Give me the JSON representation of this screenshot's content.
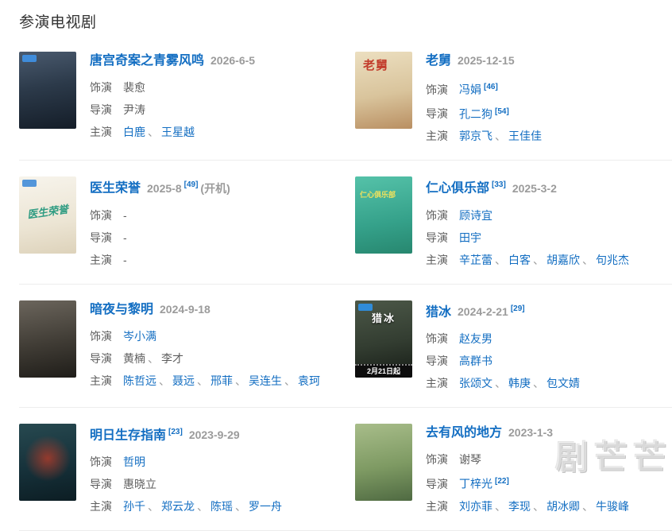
{
  "page": {
    "title": "参演电视剧",
    "watermark": "剧芒芒"
  },
  "colors": {
    "link": "#136ec2",
    "date": "#9b9b9b",
    "text": "#5e5e5e",
    "divider": "#ededed"
  },
  "entries": [
    {
      "title": "唐宫奇案之青雾风鸣",
      "date": "2026-6-5",
      "rows": [
        {
          "label": "饰演",
          "items": [
            {
              "name": "裴愈",
              "link": false
            }
          ]
        },
        {
          "label": "导演",
          "items": [
            {
              "name": "尹涛",
              "link": false
            }
          ]
        },
        {
          "label": "主演",
          "items": [
            {
              "name": "白鹿",
              "link": true
            },
            {
              "name": "王星越",
              "link": true
            }
          ]
        }
      ],
      "poster": {
        "bg": "linear-gradient(170deg,#4a5a6e 0%,#2c3a4a 45%,#141d28 100%)",
        "badge": "#3f8fe0"
      }
    },
    {
      "title": "老舅",
      "date": "2025-12-15",
      "rows": [
        {
          "label": "饰演",
          "items": [
            {
              "name": "冯娟",
              "link": true,
              "ref": "[46]"
            }
          ]
        },
        {
          "label": "导演",
          "items": [
            {
              "name": "孔二狗",
              "link": true,
              "ref": "[54]"
            }
          ]
        },
        {
          "label": "主演",
          "items": [
            {
              "name": "郭京飞",
              "link": true
            },
            {
              "name": "王佳佳",
              "link": true
            }
          ]
        }
      ],
      "poster": {
        "bg": "linear-gradient(170deg,#ecdfc0 0%,#d9c49c 55%,#b98f62 100%)",
        "label": "老舅",
        "label_color": "#c23b2a",
        "label_style": "tl"
      }
    },
    {
      "title": "医生荣誉",
      "date": "2025-8",
      "date_ref": "[49]",
      "date_suffix": "(开机)",
      "rows": [
        {
          "label": "饰演",
          "items": [
            {
              "name": "-",
              "link": false
            }
          ]
        },
        {
          "label": "导演",
          "items": [
            {
              "name": "-",
              "link": false
            }
          ]
        },
        {
          "label": "主演",
          "items": [
            {
              "name": "-",
              "link": false
            }
          ]
        }
      ],
      "poster": {
        "bg": "linear-gradient(170deg,#f7f4ec 0%,#ece5d4 60%,#ddd2ba 100%)",
        "badge": "#4a90d9",
        "label": "医生荣誉",
        "label_color": "#2f9c82",
        "label_style": "script"
      }
    },
    {
      "title": "仁心俱乐部",
      "title_ref": "[33]",
      "date": "2025-3-2",
      "rows": [
        {
          "label": "饰演",
          "items": [
            {
              "name": "顾诗宜",
              "link": true
            }
          ]
        },
        {
          "label": "导演",
          "items": [
            {
              "name": "田宇",
              "link": true
            }
          ]
        },
        {
          "label": "主演",
          "items": [
            {
              "name": "辛芷蕾",
              "link": true
            },
            {
              "name": "白客",
              "link": true
            },
            {
              "name": "胡嘉欣",
              "link": true
            },
            {
              "name": "句兆杰",
              "link": true
            }
          ]
        }
      ],
      "poster": {
        "bg": "linear-gradient(170deg,#55c2a9 0%,#35a18a 60%,#27876f 100%)",
        "label": "仁心俱乐部",
        "label_color": "#f2e25c",
        "label_style": "small-yellow"
      }
    },
    {
      "title": "暗夜与黎明",
      "date": "2024-9-18",
      "rows": [
        {
          "label": "饰演",
          "items": [
            {
              "name": "岑小满",
              "link": true
            }
          ]
        },
        {
          "label": "导演",
          "items": [
            {
              "name": "黄楠",
              "link": false
            },
            {
              "name": "李才",
              "link": false
            }
          ]
        },
        {
          "label": "主演",
          "items": [
            {
              "name": "陈哲远",
              "link": true
            },
            {
              "name": "聂远",
              "link": true
            },
            {
              "name": "邢菲",
              "link": true
            },
            {
              "name": "吴连生",
              "link": true
            },
            {
              "name": "袁珂",
              "link": true
            }
          ]
        }
      ],
      "poster": {
        "bg": "linear-gradient(170deg,#6b655c 0%,#403c35 55%,#1f1d19 100%)"
      }
    },
    {
      "title": "猎冰",
      "date": "2024-2-21",
      "date_ref": "[29]",
      "rows": [
        {
          "label": "饰演",
          "items": [
            {
              "name": "赵友男",
              "link": true
            }
          ]
        },
        {
          "label": "导演",
          "items": [
            {
              "name": "高群书",
              "link": true
            }
          ]
        },
        {
          "label": "主演",
          "items": [
            {
              "name": "张颂文",
              "link": true
            },
            {
              "name": "韩庚",
              "link": true
            },
            {
              "name": "包文婧",
              "link": true
            }
          ]
        }
      ],
      "poster": {
        "bg": "linear-gradient(170deg,#4c5848 0%,#333d31 55%,#161c16 100%)",
        "badge": "#2f8fe0",
        "label": "猎冰",
        "label_color": "#ffffff",
        "label_style": "cal",
        "banner": "2月21日起"
      }
    },
    {
      "title": "明日生存指南",
      "title_ref": "[23]",
      "date": "2023-9-29",
      "rows": [
        {
          "label": "饰演",
          "items": [
            {
              "name": "哲明",
              "link": true
            }
          ]
        },
        {
          "label": "导演",
          "items": [
            {
              "name": "惠晓立",
              "link": false
            }
          ]
        },
        {
          "label": "主演",
          "items": [
            {
              "name": "孙千",
              "link": true
            },
            {
              "name": "郑云龙",
              "link": true
            },
            {
              "name": "陈瑶",
              "link": true
            },
            {
              "name": "罗一舟",
              "link": true
            }
          ]
        }
      ],
      "poster": {
        "bg": "radial-gradient(circle at 50% 45%, rgba(190,60,40,.75) 0%, rgba(190,60,40,0) 45%), linear-gradient(170deg,#274950 0%,#16313a 55%,#0c1d23 100%)"
      }
    },
    {
      "title": "去有风的地方",
      "date": "2023-1-3",
      "rows": [
        {
          "label": "饰演",
          "items": [
            {
              "name": "谢琴",
              "link": false
            }
          ]
        },
        {
          "label": "导演",
          "items": [
            {
              "name": "丁梓光",
              "link": true,
              "ref": "[22]"
            }
          ]
        },
        {
          "label": "主演",
          "items": [
            {
              "name": "刘亦菲",
              "link": true
            },
            {
              "name": "李现",
              "link": true
            },
            {
              "name": "胡冰卿",
              "link": true
            },
            {
              "name": "牛骏峰",
              "link": true
            }
          ]
        }
      ],
      "poster": {
        "bg": "linear-gradient(170deg,#a8bd8a 0%,#7e9a63 55%,#4f6a42 100%)"
      }
    }
  ]
}
